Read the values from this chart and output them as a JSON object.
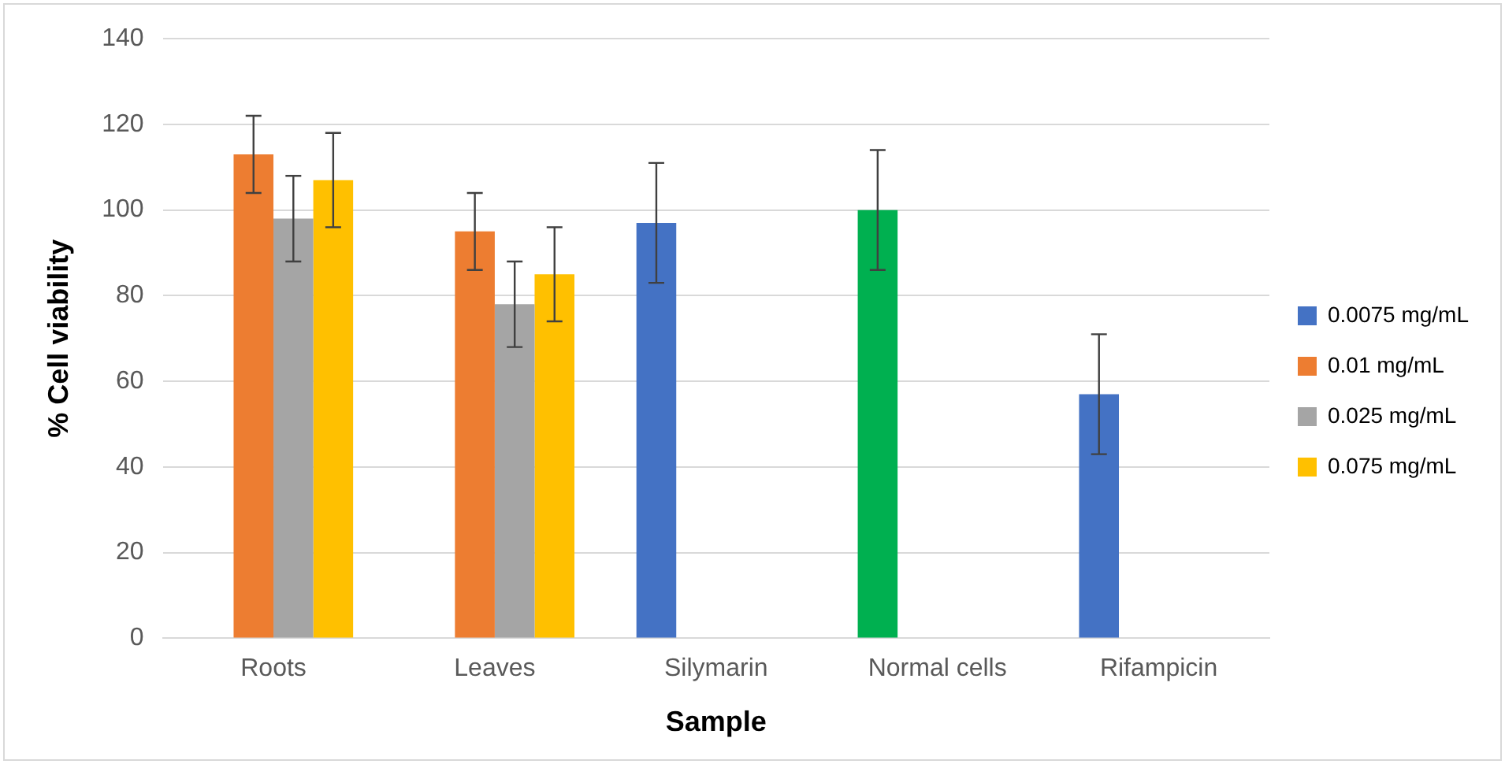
{
  "chart_data": {
    "type": "bar",
    "xlabel": "Sample",
    "ylabel": "% Cell viability",
    "categories": [
      "Roots",
      "Leaves",
      "Silymarin",
      "Normal cells",
      "Rifampicin"
    ],
    "series": [
      {
        "name": "0.0075 mg/mL",
        "color": "#4472c4",
        "colors": [
          "#4472c4",
          "#4472c4",
          "#4472c4",
          "#00b050",
          "#4472c4"
        ],
        "values": [
          null,
          null,
          97,
          100,
          57
        ],
        "errors": [
          null,
          null,
          14,
          14,
          14
        ]
      },
      {
        "name": "0.01 mg/mL",
        "color": "#ed7d31",
        "values": [
          113,
          95,
          null,
          null,
          null
        ],
        "errors": [
          9,
          9,
          null,
          null,
          null
        ]
      },
      {
        "name": "0.025 mg/mL",
        "color": "#a5a5a5",
        "values": [
          98,
          78,
          null,
          null,
          null
        ],
        "errors": [
          10,
          10,
          null,
          null,
          null
        ]
      },
      {
        "name": "0.075 mg/mL",
        "color": "#ffc000",
        "values": [
          107,
          85,
          null,
          null,
          null
        ],
        "errors": [
          11,
          11,
          null,
          null,
          null
        ]
      }
    ],
    "ylim": [
      0,
      140
    ],
    "yticks": [
      0,
      20,
      40,
      60,
      80,
      100,
      120,
      140
    ],
    "grid": "y",
    "legend": "right"
  }
}
